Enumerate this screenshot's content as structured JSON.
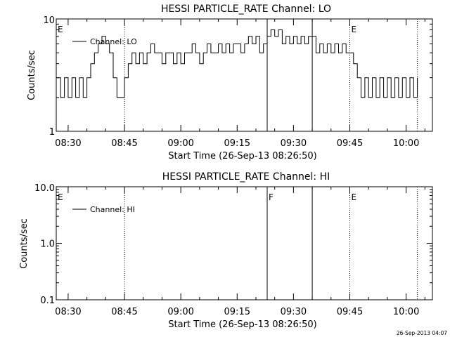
{
  "footer_stamp": "26-Sep-2013 04:07",
  "chart_data": [
    {
      "type": "line",
      "title": "HESSI PARTICLE_RATE Channel: LO",
      "xlabel": "Start Time (26-Sep-13 08:26:50)",
      "ylabel": "Counts/sec",
      "y_scale": "log",
      "ylim": [
        1,
        10
      ],
      "yticks": [
        "1",
        "10"
      ],
      "xlim": [
        "08:26:50",
        "10:07:00"
      ],
      "xticks": [
        "08:30",
        "08:45",
        "09:00",
        "09:15",
        "09:30",
        "09:45",
        "10:00"
      ],
      "legend": {
        "position": "top-left",
        "entries": [
          "Channel: LO"
        ]
      },
      "flag_markers": [
        {
          "time": "08:26:50",
          "label": "E",
          "style": "none"
        },
        {
          "time": "08:45:00",
          "label": "",
          "style": "dotted"
        },
        {
          "time": "09:23:00",
          "label": "",
          "style": "solid"
        },
        {
          "time": "09:35:00",
          "label": "",
          "style": "solid"
        },
        {
          "time": "09:45:00",
          "label": "E",
          "style": "dotted"
        },
        {
          "time": "10:03:00",
          "label": "",
          "style": "dotted"
        }
      ],
      "series": [
        {
          "name": "Channel: LO",
          "points": [
            [
              "08:27:00",
              3
            ],
            [
              "08:28:00",
              2
            ],
            [
              "08:29:00",
              3
            ],
            [
              "08:30:00",
              2
            ],
            [
              "08:31:00",
              3
            ],
            [
              "08:32:00",
              2
            ],
            [
              "08:33:00",
              3
            ],
            [
              "08:34:00",
              2
            ],
            [
              "08:35:00",
              3
            ],
            [
              "08:36:00",
              4
            ],
            [
              "08:37:00",
              5
            ],
            [
              "08:38:00",
              6
            ],
            [
              "08:39:00",
              7
            ],
            [
              "08:40:00",
              6
            ],
            [
              "08:41:00",
              5
            ],
            [
              "08:42:00",
              3
            ],
            [
              "08:43:00",
              2
            ],
            [
              "08:44:00",
              2
            ],
            [
              "08:45:00",
              3
            ],
            [
              "08:46:00",
              4
            ],
            [
              "08:47:00",
              5
            ],
            [
              "08:48:00",
              4
            ],
            [
              "08:49:00",
              5
            ],
            [
              "08:50:00",
              4
            ],
            [
              "08:51:00",
              5
            ],
            [
              "08:52:00",
              6
            ],
            [
              "08:53:00",
              5
            ],
            [
              "08:54:00",
              5
            ],
            [
              "08:55:00",
              4
            ],
            [
              "08:56:00",
              5
            ],
            [
              "08:57:00",
              5
            ],
            [
              "08:58:00",
              4
            ],
            [
              "08:59:00",
              5
            ],
            [
              "09:00:00",
              4
            ],
            [
              "09:01:00",
              5
            ],
            [
              "09:02:00",
              5
            ],
            [
              "09:03:00",
              6
            ],
            [
              "09:04:00",
              5
            ],
            [
              "09:05:00",
              4
            ],
            [
              "09:06:00",
              5
            ],
            [
              "09:07:00",
              6
            ],
            [
              "09:08:00",
              5
            ],
            [
              "09:09:00",
              5
            ],
            [
              "09:10:00",
              6
            ],
            [
              "09:11:00",
              5
            ],
            [
              "09:12:00",
              6
            ],
            [
              "09:13:00",
              5
            ],
            [
              "09:14:00",
              6
            ],
            [
              "09:15:00",
              6
            ],
            [
              "09:16:00",
              5
            ],
            [
              "09:17:00",
              6
            ],
            [
              "09:18:00",
              7
            ],
            [
              "09:19:00",
              6
            ],
            [
              "09:20:00",
              7
            ],
            [
              "09:21:00",
              5
            ],
            [
              "09:22:00",
              6
            ],
            [
              "09:23:00",
              7
            ],
            [
              "09:24:00",
              8
            ],
            [
              "09:25:00",
              7
            ],
            [
              "09:26:00",
              8
            ],
            [
              "09:27:00",
              6
            ],
            [
              "09:28:00",
              7
            ],
            [
              "09:29:00",
              6
            ],
            [
              "09:30:00",
              7
            ],
            [
              "09:31:00",
              6
            ],
            [
              "09:32:00",
              7
            ],
            [
              "09:33:00",
              6
            ],
            [
              "09:34:00",
              7
            ],
            [
              "09:35:00",
              7
            ],
            [
              "09:36:00",
              5
            ],
            [
              "09:37:00",
              6
            ],
            [
              "09:38:00",
              5
            ],
            [
              "09:39:00",
              6
            ],
            [
              "09:40:00",
              5
            ],
            [
              "09:41:00",
              6
            ],
            [
              "09:42:00",
              5
            ],
            [
              "09:43:00",
              6
            ],
            [
              "09:44:00",
              5
            ],
            [
              "09:45:00",
              5
            ],
            [
              "09:46:00",
              4
            ],
            [
              "09:47:00",
              3
            ],
            [
              "09:48:00",
              2
            ],
            [
              "09:49:00",
              3
            ],
            [
              "09:50:00",
              2
            ],
            [
              "09:51:00",
              3
            ],
            [
              "09:52:00",
              2
            ],
            [
              "09:53:00",
              3
            ],
            [
              "09:54:00",
              2
            ],
            [
              "09:55:00",
              3
            ],
            [
              "09:56:00",
              2
            ],
            [
              "09:57:00",
              3
            ],
            [
              "09:58:00",
              2
            ],
            [
              "09:59:00",
              3
            ],
            [
              "10:00:00",
              2
            ],
            [
              "10:01:00",
              3
            ],
            [
              "10:02:00",
              2
            ],
            [
              "10:03:00",
              3
            ]
          ]
        }
      ]
    },
    {
      "type": "line",
      "title": "HESSI PARTICLE_RATE Channel: HI",
      "xlabel": "Start Time (26-Sep-13 08:26:50)",
      "ylabel": "Counts/sec",
      "y_scale": "log",
      "ylim": [
        0.1,
        10
      ],
      "yticks": [
        "0.1",
        "1.0",
        "10.0"
      ],
      "xlim": [
        "08:26:50",
        "10:07:00"
      ],
      "xticks": [
        "08:30",
        "08:45",
        "09:00",
        "09:15",
        "09:30",
        "09:45",
        "10:00"
      ],
      "legend": {
        "position": "top-left",
        "entries": [
          "Channel: HI"
        ]
      },
      "flag_markers": [
        {
          "time": "08:26:50",
          "label": "E",
          "style": "none"
        },
        {
          "time": "08:45:00",
          "label": "",
          "style": "dotted"
        },
        {
          "time": "09:23:00",
          "label": "F",
          "style": "solid"
        },
        {
          "time": "09:35:00",
          "label": "",
          "style": "solid"
        },
        {
          "time": "09:45:00",
          "label": "E",
          "style": "dotted"
        },
        {
          "time": "10:03:00",
          "label": "",
          "style": "dotted"
        }
      ],
      "series": [
        {
          "name": "Channel: HI",
          "points": []
        }
      ]
    }
  ]
}
